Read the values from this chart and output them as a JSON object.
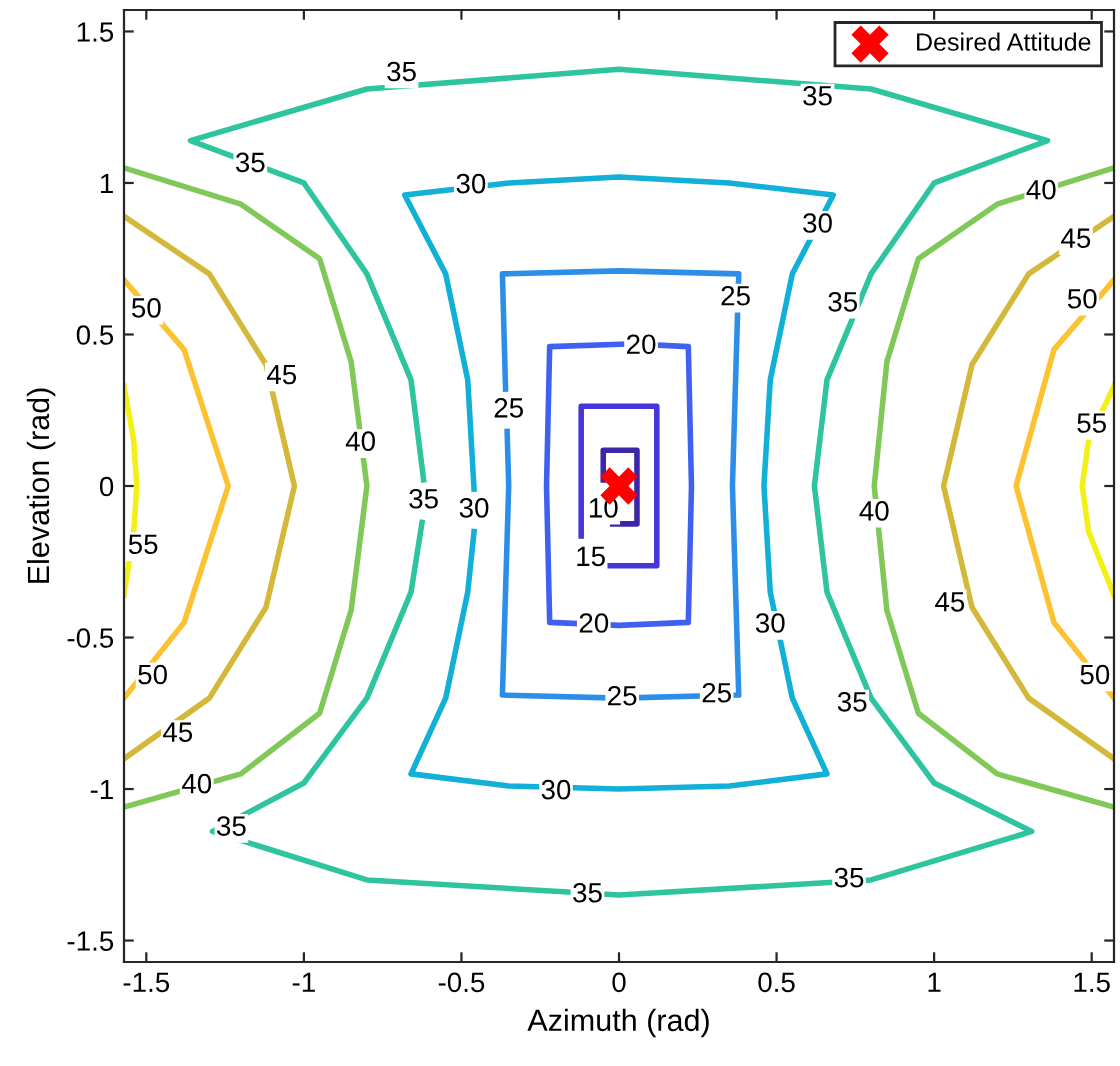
{
  "chart_data": {
    "type": "line",
    "xlabel": "Azimuth (rad)",
    "ylabel": "Elevation (rad)",
    "xlim": [
      -1.5708,
      1.5708
    ],
    "ylim": [
      -1.5708,
      1.5708
    ],
    "xticks": [
      -1.5,
      -1,
      -0.5,
      0,
      0.5,
      1,
      1.5
    ],
    "yticks": [
      -1.5,
      -1,
      -0.5,
      0,
      0.5,
      1,
      1.5
    ],
    "grid": false,
    "legend": "top right",
    "marker": "none",
    "line_style": "solid",
    "series": [
      {
        "color": "#3e26a8",
        "x": [
          -0.05,
          -0.05,
          0.057,
          0.057,
          -0.02
        ],
        "values": [
          0.02,
          0.118,
          0.118,
          -0.125,
          -0.125
        ]
      },
      {
        "color": "#4536d8",
        "x": [
          -0.12,
          -0.12,
          0.12,
          0.12,
          -0.03
        ],
        "values": [
          -0.165,
          0.263,
          0.263,
          -0.263,
          -0.263
        ]
      },
      {
        "color": "#4060f0",
        "x": [
          0.12,
          0.22,
          0.23,
          0.22,
          0,
          -0.22,
          -0.23,
          -0.22,
          0.02
        ],
        "values": [
          0.465,
          0.46,
          0,
          -0.45,
          -0.46,
          -0.45,
          0,
          0.46,
          0.468
        ]
      },
      {
        "color": "#2d8ee8",
        "x": [
          -0.355,
          -0.35,
          -0.37,
          0,
          0.38,
          0.36,
          0.38,
          0,
          -0.37,
          -0.36
        ],
        "values": [
          0.18,
          0,
          -0.69,
          -0.7,
          -0.69,
          0,
          0.7,
          0.71,
          0.7,
          0.32
        ]
      },
      {
        "color": "#12b0d6",
        "x": [
          -0.46,
          -0.48,
          -0.55,
          -0.66,
          -0.35,
          0,
          0.35,
          0.66,
          0.55,
          0.48,
          0.46,
          0.48,
          0.55,
          0.68,
          0.35,
          0,
          -0.35,
          -0.68,
          -0.55,
          -0.48,
          -0.46
        ],
        "values": [
          -0.15,
          -0.35,
          -0.7,
          -0.95,
          -0.99,
          -1.0,
          -0.99,
          -0.95,
          -0.7,
          -0.35,
          0,
          0.35,
          0.7,
          0.96,
          1.0,
          1.02,
          1.0,
          0.96,
          0.7,
          0.35,
          -0.01
        ]
      },
      {
        "color": "#2fc4a0",
        "x": [
          -0.625,
          -0.66,
          -0.8,
          -1.0,
          -1.29,
          -0.8,
          0,
          0.8,
          1.31,
          1.0,
          0.8,
          0.66,
          0.62,
          0.66,
          0.8,
          1.0,
          1.36,
          0.8,
          0,
          -0.8,
          -1.36,
          -1.0,
          -0.8,
          -0.66,
          -0.62
        ],
        "values": [
          -0.12,
          -0.35,
          -0.7,
          -0.98,
          -1.14,
          -1.3,
          -1.35,
          -1.3,
          -1.14,
          -0.98,
          -0.7,
          -0.35,
          0,
          0.35,
          0.7,
          1.0,
          1.14,
          1.31,
          1.375,
          1.31,
          1.14,
          1.0,
          0.7,
          0.35,
          0.02
        ]
      },
      {
        "color": "#80c858",
        "x": [
          -1.5708,
          -1.2,
          -0.95,
          -0.85,
          -0.8,
          -0.85,
          -0.95,
          -1.2,
          -1.5708
        ],
        "values": [
          1.05,
          0.93,
          0.75,
          0.41,
          0,
          -0.41,
          -0.75,
          -0.95,
          -1.06
        ]
      },
      {
        "color": "#80c858",
        "x": [
          1.5708,
          1.2,
          0.95,
          0.85,
          0.81,
          0.85,
          0.95,
          1.2,
          1.5708
        ],
        "values": [
          1.05,
          0.93,
          0.75,
          0.41,
          0,
          -0.41,
          -0.75,
          -0.95,
          -1.06
        ]
      },
      {
        "color": "#d4b83a",
        "x": [
          -1.5708,
          -1.3,
          -1.12,
          -1.03,
          -1.12,
          -1.3,
          -1.5708
        ],
        "values": [
          0.89,
          0.7,
          0.4,
          0,
          -0.4,
          -0.7,
          -0.9
        ]
      },
      {
        "color": "#d4b83a",
        "x": [
          1.5708,
          1.3,
          1.12,
          1.03,
          1.12,
          1.3,
          1.5708
        ],
        "values": [
          0.89,
          0.7,
          0.4,
          0,
          -0.4,
          -0.7,
          -0.9
        ]
      },
      {
        "color": "#fcc232",
        "x": [
          -1.5708,
          -1.38,
          -1.24,
          -1.38,
          -1.5708
        ],
        "values": [
          0.68,
          0.45,
          0,
          -0.45,
          -0.7
        ]
      },
      {
        "color": "#fcc232",
        "x": [
          1.5708,
          1.38,
          1.26,
          1.38,
          1.5708
        ],
        "values": [
          0.68,
          0.45,
          0,
          -0.45,
          -0.7
        ]
      },
      {
        "color": "#f2f018",
        "x": [
          -1.5708,
          -1.54,
          -1.53,
          -1.54,
          -1.5708
        ],
        "values": [
          0.33,
          0.15,
          0,
          -0.15,
          -0.36
        ]
      },
      {
        "color": "#f2f018",
        "x": [
          1.5708,
          1.49,
          1.47,
          1.49,
          1.5708
        ],
        "values": [
          0.33,
          0.15,
          0,
          -0.15,
          -0.36
        ]
      },
      {
        "name": "Desired Attitude",
        "type": "scatter",
        "marker": "cross",
        "color": "#ff0000",
        "x": [
          0
        ],
        "values": [
          0
        ]
      }
    ],
    "annotations": [
      {
        "text": "35",
        "x": -0.69,
        "y": 1.36
      },
      {
        "text": "35",
        "x": 0.63,
        "y": 1.28
      },
      {
        "text": "35",
        "x": -1.17,
        "y": 1.06
      },
      {
        "text": "30",
        "x": -0.47,
        "y": 0.99
      },
      {
        "text": "30",
        "x": 0.63,
        "y": 0.86
      },
      {
        "text": "40",
        "x": 1.34,
        "y": 0.97
      },
      {
        "text": "45",
        "x": 1.45,
        "y": 0.81
      },
      {
        "text": "50",
        "x": -1.5,
        "y": 0.58
      },
      {
        "text": "50",
        "x": 1.47,
        "y": 0.61
      },
      {
        "text": "45",
        "x": -1.07,
        "y": 0.36
      },
      {
        "text": "25",
        "x": 0.37,
        "y": 0.62
      },
      {
        "text": "35",
        "x": 0.71,
        "y": 0.6
      },
      {
        "text": "20",
        "x": 0.07,
        "y": 0.46
      },
      {
        "text": "25",
        "x": -0.35,
        "y": 0.25
      },
      {
        "text": "40",
        "x": -0.82,
        "y": 0.14
      },
      {
        "text": "55",
        "x": 1.5,
        "y": 0.2
      },
      {
        "text": "35",
        "x": -0.62,
        "y": -0.05
      },
      {
        "text": "30",
        "x": -0.46,
        "y": -0.08
      },
      {
        "text": "10",
        "x": -0.05,
        "y": -0.08
      },
      {
        "text": "40",
        "x": 0.81,
        "y": -0.09
      },
      {
        "text": "55",
        "x": -1.51,
        "y": -0.2
      },
      {
        "text": "15",
        "x": -0.09,
        "y": -0.24
      },
      {
        "text": "30",
        "x": 0.48,
        "y": -0.46
      },
      {
        "text": "45",
        "x": 1.05,
        "y": -0.39
      },
      {
        "text": "20",
        "x": -0.08,
        "y": -0.46
      },
      {
        "text": "50",
        "x": -1.48,
        "y": -0.63
      },
      {
        "text": "25",
        "x": 0.01,
        "y": -0.7
      },
      {
        "text": "25",
        "x": 0.31,
        "y": -0.69
      },
      {
        "text": "50",
        "x": 1.51,
        "y": -0.63
      },
      {
        "text": "35",
        "x": 0.74,
        "y": -0.72
      },
      {
        "text": "45",
        "x": -1.4,
        "y": -0.82
      },
      {
        "text": "40",
        "x": -1.34,
        "y": -0.99
      },
      {
        "text": "30",
        "x": -0.2,
        "y": -1.01
      },
      {
        "text": "35",
        "x": -1.23,
        "y": -1.13
      },
      {
        "text": "35",
        "x": -0.1,
        "y": -1.35
      },
      {
        "text": "35",
        "x": 0.73,
        "y": -1.3
      }
    ]
  }
}
